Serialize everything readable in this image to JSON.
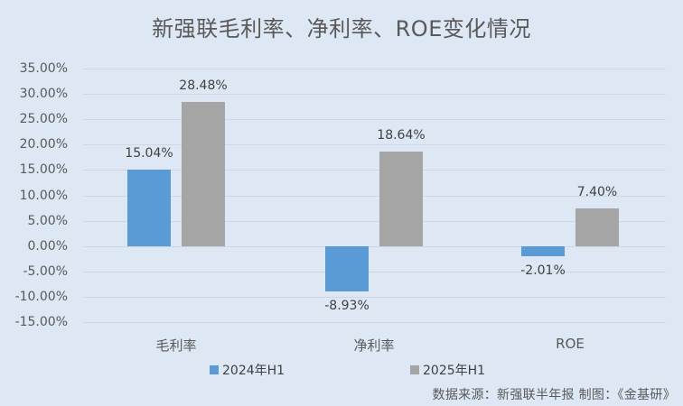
{
  "title": "新强联毛利率、净利率、ROE变化情况",
  "source": "数据来源：新强联半年报   制图：《金基研》",
  "colors": {
    "background": "#dde8f4",
    "series_2024": "#5b9bd5",
    "series_2025": "#a5a5a5",
    "grid": "#cdd7e2"
  },
  "legend": [
    {
      "label": "2024年H1",
      "color": "#5b9bd5"
    },
    {
      "label": "2025年H1",
      "color": "#a5a5a5"
    }
  ],
  "chart_data": {
    "type": "bar",
    "title": "新强联毛利率、净利率、ROE变化情况",
    "xlabel": "",
    "ylabel": "",
    "categories": [
      "毛利率",
      "净利率",
      "ROE"
    ],
    "series": [
      {
        "name": "2024年H1",
        "values": [
          15.04,
          -8.93,
          -2.01
        ],
        "labels": [
          "15.04%",
          "-8.93%",
          "-2.01%"
        ]
      },
      {
        "name": "2025年H1",
        "values": [
          28.48,
          18.64,
          7.4
        ],
        "labels": [
          "28.48%",
          "18.64%",
          "7.40%"
        ]
      }
    ],
    "ylim": [
      -15,
      35
    ],
    "yticks": [
      "35.00%",
      "30.00%",
      "25.00%",
      "20.00%",
      "15.00%",
      "10.00%",
      "5.00%",
      "0.00%",
      "-5.00%",
      "-10.00%",
      "-15.00%"
    ],
    "ytick_values": [
      35,
      30,
      25,
      20,
      15,
      10,
      5,
      0,
      -5,
      -10,
      -15
    ],
    "grid": true,
    "legend_position": "bottom",
    "annotations": [
      "数据来源：新强联半年报   制图：《金基研》"
    ]
  }
}
